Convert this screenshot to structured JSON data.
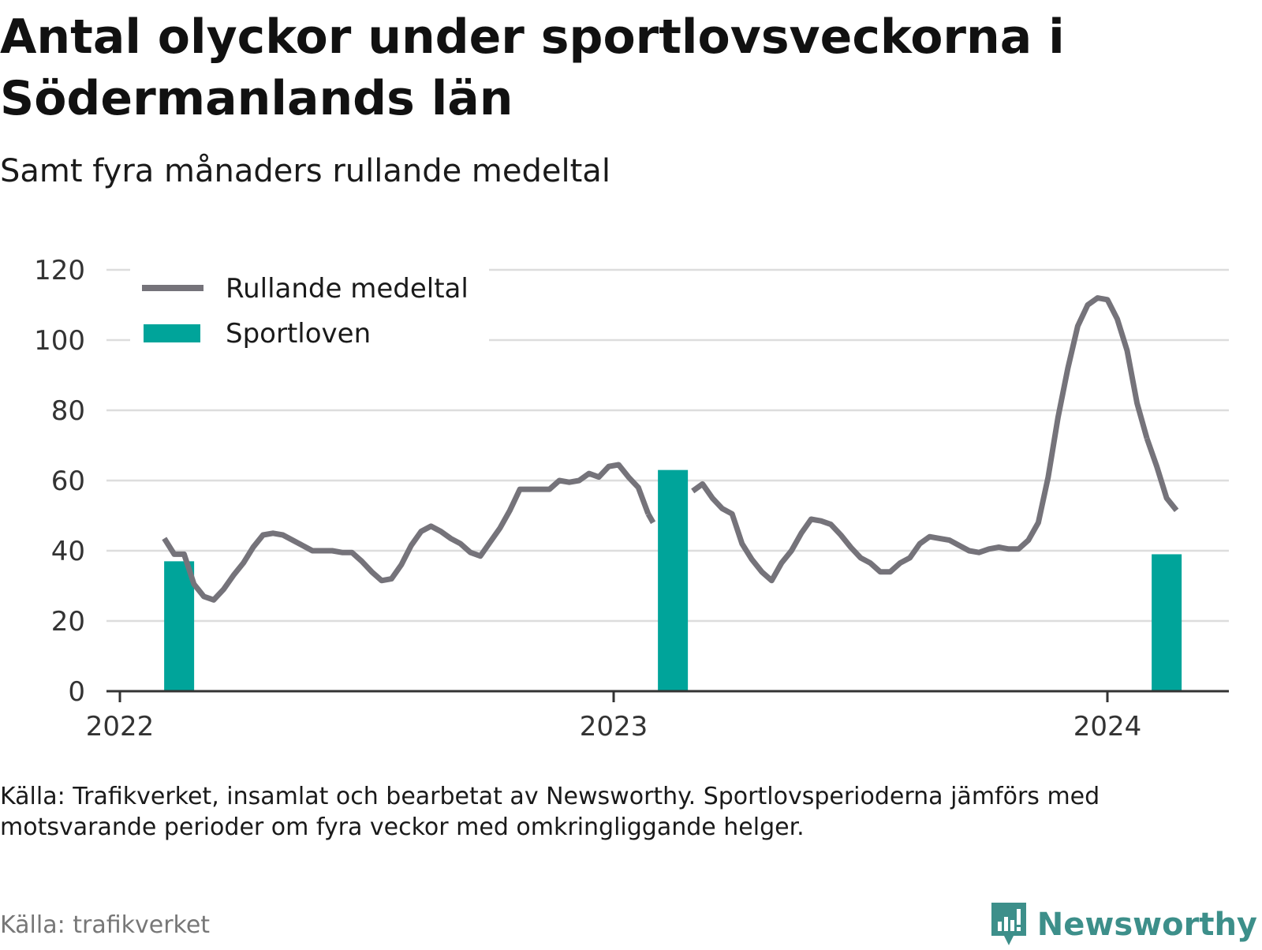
{
  "title": "Antal olyckor under sportlovsveckorna i Södermanlands län",
  "subtitle": "Samt fyra månaders rullande medeltal",
  "source_note": "Källa: Trafikverket, insamlat och bearbetat av Newsworthy. Sportlovsperioderna jämförs med motsvarande perioder om fyra veckor med omkringliggande helger.",
  "footer_source": "Källa: trafikverket",
  "brand": {
    "name": "Newsworthy",
    "color": "#3d8f8a"
  },
  "chart_data": {
    "type": "bar+line",
    "title": "Antal olyckor under sportlovsveckorna i Södermanlands län",
    "subtitle": "Samt fyra månaders rullande medeltal",
    "ylim": [
      0,
      120
    ],
    "yticks": [
      0,
      20,
      40,
      60,
      80,
      100,
      120
    ],
    "xticks": [
      "2022",
      "2023",
      "2024"
    ],
    "grid": true,
    "legend": {
      "placement": "top-left",
      "entries": [
        "Rullande medeltal",
        "Sportloven"
      ]
    },
    "colors": {
      "line": "#75737a",
      "bar": "#00a49a",
      "grid": "#dddddd",
      "axis": "#333333"
    },
    "series": [
      {
        "name": "Sportloven",
        "kind": "bar",
        "x": [
          2022.12,
          2023.12,
          2024.12
        ],
        "values": [
          37,
          63,
          39
        ]
      },
      {
        "name": "Rullande medeltal",
        "kind": "line",
        "segments": [
          {
            "x": [
              2022.09,
              2022.11,
              2022.13,
              2022.15,
              2022.17,
              2022.19,
              2022.21,
              2022.23,
              2022.25,
              2022.27,
              2022.29,
              2022.31,
              2022.33,
              2022.35,
              2022.37,
              2022.39,
              2022.41,
              2022.43,
              2022.45,
              2022.47,
              2022.49,
              2022.51,
              2022.53,
              2022.55,
              2022.57,
              2022.59,
              2022.61,
              2022.63,
              2022.65,
              2022.67,
              2022.69,
              2022.71,
              2022.73,
              2022.75,
              2022.77,
              2022.79,
              2022.81,
              2022.83,
              2022.85,
              2022.87,
              2022.89,
              2022.91,
              2022.93,
              2022.95,
              2022.97,
              2022.99,
              2023.01,
              2023.03,
              2023.05,
              2023.07
            ],
            "y": [
              43.5,
              39,
              39,
              30.5,
              27,
              26,
              29,
              33,
              36.5,
              41,
              44.5,
              45,
              44.5,
              43,
              41.5,
              40,
              40,
              40,
              39.5,
              39.5,
              37,
              34,
              31.5,
              32,
              36,
              41.5,
              45.5,
              47,
              45.5,
              43.5,
              42,
              39.5,
              38.5,
              42.5,
              46.5,
              51.5,
              57.5,
              57.5,
              57.5,
              57.5,
              60,
              59.5,
              60,
              62,
              61,
              64,
              64.5,
              61,
              58,
              50.5
            ]
          },
          {
            "x": [
              2023.07,
              2023.08
            ],
            "y": [
              50.5,
              48
            ]
          },
          {
            "x": [
              2023.16,
              2023.18,
              2023.2,
              2023.22,
              2023.24,
              2023.26,
              2023.28,
              2023.3,
              2023.32,
              2023.34,
              2023.36,
              2023.38,
              2023.4,
              2023.42,
              2023.44,
              2023.46,
              2023.48,
              2023.5,
              2023.52,
              2023.54,
              2023.56,
              2023.58,
              2023.6,
              2023.62,
              2023.64,
              2023.66,
              2023.68,
              2023.7,
              2023.72,
              2023.74,
              2023.76,
              2023.78,
              2023.8,
              2023.82,
              2023.84,
              2023.86,
              2023.88,
              2023.9,
              2023.92,
              2023.94,
              2023.96,
              2023.98,
              2024.0,
              2024.02,
              2024.04,
              2024.06,
              2024.08
            ],
            "y": [
              57,
              59,
              55,
              52,
              50.5,
              42,
              37.5,
              34,
              31.5,
              36.5,
              40,
              45,
              49,
              48.5,
              47.5,
              44.5,
              41,
              38,
              36.5,
              34,
              34,
              36.5,
              38,
              42,
              44,
              43.5,
              43,
              41.5,
              40,
              39.5,
              40.5,
              41,
              40.5,
              40.5,
              43,
              48,
              61,
              78,
              92,
              104,
              110,
              112,
              111.5,
              106,
              97,
              82,
              72
            ]
          },
          {
            "x": [
              2024.08,
              2024.1,
              2024.12,
              2024.14
            ],
            "y": [
              72,
              64,
              55,
              51.5
            ]
          }
        ]
      }
    ]
  }
}
